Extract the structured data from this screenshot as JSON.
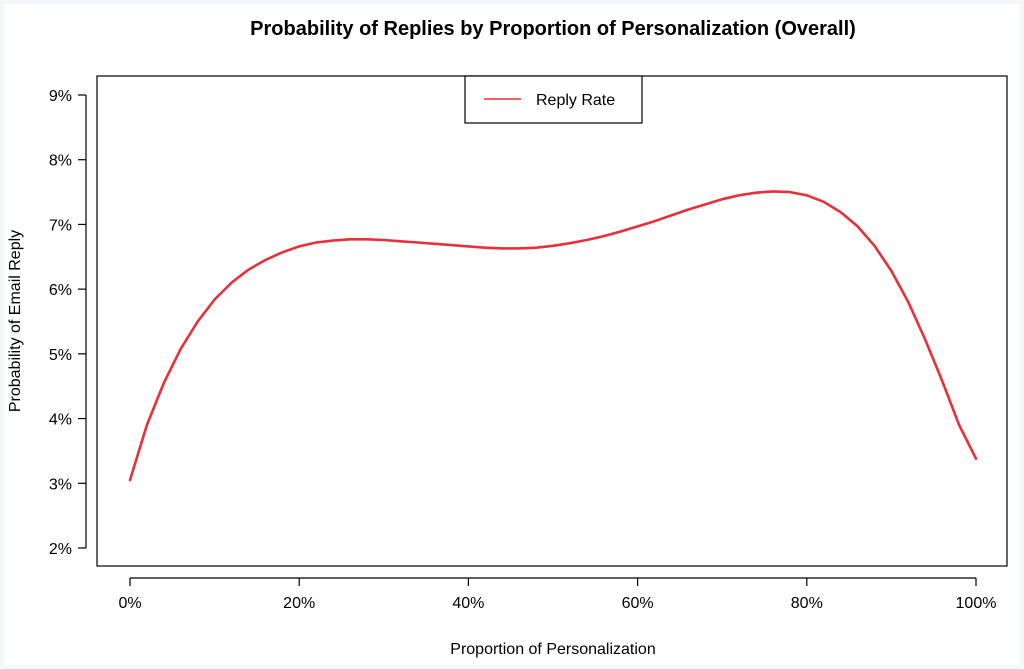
{
  "chart_data": {
    "type": "line",
    "title": "Probability of Replies by Proportion of Personalization (Overall)",
    "xlabel": "Proportion of Personalization",
    "ylabel": "Probability of Email Reply",
    "xlim": [
      0,
      100
    ],
    "ylim": [
      2,
      9
    ],
    "x_ticks": [
      0,
      20,
      40,
      60,
      80,
      100
    ],
    "x_tick_labels": [
      "0%",
      "20%",
      "40%",
      "60%",
      "80%",
      "100%"
    ],
    "y_ticks": [
      2,
      3,
      4,
      5,
      6,
      7,
      8,
      9
    ],
    "y_tick_labels": [
      "2%",
      "3%",
      "4%",
      "5%",
      "6%",
      "7%",
      "8%",
      "9%"
    ],
    "grid": false,
    "legend": {
      "placement": "top-center",
      "entries": [
        "Reply Rate"
      ]
    },
    "series": [
      {
        "name": "Reply Rate",
        "color": "#e8303a",
        "x": [
          0,
          2,
          4,
          6,
          8,
          10,
          12,
          14,
          16,
          18,
          20,
          22,
          24,
          26,
          28,
          30,
          32,
          34,
          36,
          38,
          40,
          42,
          44,
          46,
          48,
          50,
          52,
          54,
          56,
          58,
          60,
          62,
          64,
          66,
          68,
          70,
          72,
          74,
          76,
          78,
          80,
          82,
          84,
          86,
          88,
          90,
          92,
          94,
          96,
          98,
          100
        ],
        "y": [
          3.05,
          3.9,
          4.55,
          5.08,
          5.5,
          5.84,
          6.1,
          6.3,
          6.45,
          6.57,
          6.66,
          6.72,
          6.75,
          6.77,
          6.77,
          6.76,
          6.74,
          6.72,
          6.7,
          6.68,
          6.66,
          6.64,
          6.63,
          6.63,
          6.64,
          6.67,
          6.71,
          6.76,
          6.82,
          6.89,
          6.97,
          7.05,
          7.14,
          7.23,
          7.31,
          7.39,
          7.45,
          7.49,
          7.51,
          7.5,
          7.45,
          7.35,
          7.19,
          6.97,
          6.67,
          6.28,
          5.8,
          5.22,
          4.58,
          3.9,
          3.38
        ]
      }
    ]
  }
}
